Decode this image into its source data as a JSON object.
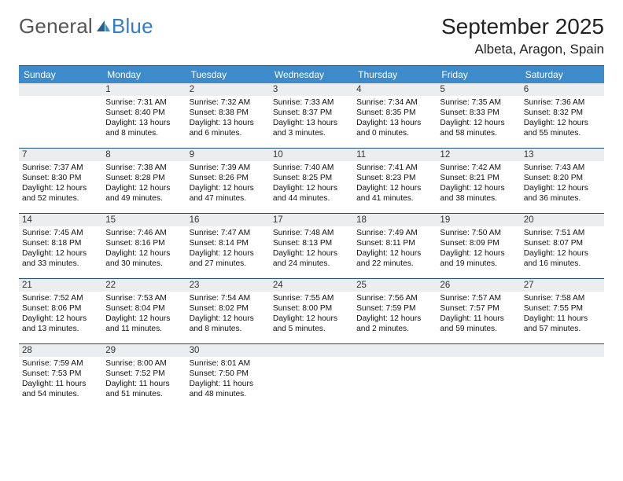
{
  "brand": {
    "general": "General",
    "blue": "Blue"
  },
  "title": {
    "month": "September 2025",
    "location": "Albeta, Aragon, Spain"
  },
  "style": {
    "header_bg": "#3e8bcb",
    "header_text": "#ffffff",
    "daynum_bg": "#ebedee",
    "divider": "#1f4e80",
    "brand_gray": "#555555",
    "brand_blue": "#2f7fc2"
  },
  "layout": {
    "columns": 7,
    "rows": 5,
    "first_day_offset": 1
  },
  "weekdays": [
    "Sunday",
    "Monday",
    "Tuesday",
    "Wednesday",
    "Thursday",
    "Friday",
    "Saturday"
  ],
  "days": [
    {
      "n": 1,
      "sunrise": "7:31 AM",
      "sunset": "8:40 PM",
      "daylight": "13 hours and 8 minutes."
    },
    {
      "n": 2,
      "sunrise": "7:32 AM",
      "sunset": "8:38 PM",
      "daylight": "13 hours and 6 minutes."
    },
    {
      "n": 3,
      "sunrise": "7:33 AM",
      "sunset": "8:37 PM",
      "daylight": "13 hours and 3 minutes."
    },
    {
      "n": 4,
      "sunrise": "7:34 AM",
      "sunset": "8:35 PM",
      "daylight": "13 hours and 0 minutes."
    },
    {
      "n": 5,
      "sunrise": "7:35 AM",
      "sunset": "8:33 PM",
      "daylight": "12 hours and 58 minutes."
    },
    {
      "n": 6,
      "sunrise": "7:36 AM",
      "sunset": "8:32 PM",
      "daylight": "12 hours and 55 minutes."
    },
    {
      "n": 7,
      "sunrise": "7:37 AM",
      "sunset": "8:30 PM",
      "daylight": "12 hours and 52 minutes."
    },
    {
      "n": 8,
      "sunrise": "7:38 AM",
      "sunset": "8:28 PM",
      "daylight": "12 hours and 49 minutes."
    },
    {
      "n": 9,
      "sunrise": "7:39 AM",
      "sunset": "8:26 PM",
      "daylight": "12 hours and 47 minutes."
    },
    {
      "n": 10,
      "sunrise": "7:40 AM",
      "sunset": "8:25 PM",
      "daylight": "12 hours and 44 minutes."
    },
    {
      "n": 11,
      "sunrise": "7:41 AM",
      "sunset": "8:23 PM",
      "daylight": "12 hours and 41 minutes."
    },
    {
      "n": 12,
      "sunrise": "7:42 AM",
      "sunset": "8:21 PM",
      "daylight": "12 hours and 38 minutes."
    },
    {
      "n": 13,
      "sunrise": "7:43 AM",
      "sunset": "8:20 PM",
      "daylight": "12 hours and 36 minutes."
    },
    {
      "n": 14,
      "sunrise": "7:45 AM",
      "sunset": "8:18 PM",
      "daylight": "12 hours and 33 minutes."
    },
    {
      "n": 15,
      "sunrise": "7:46 AM",
      "sunset": "8:16 PM",
      "daylight": "12 hours and 30 minutes."
    },
    {
      "n": 16,
      "sunrise": "7:47 AM",
      "sunset": "8:14 PM",
      "daylight": "12 hours and 27 minutes."
    },
    {
      "n": 17,
      "sunrise": "7:48 AM",
      "sunset": "8:13 PM",
      "daylight": "12 hours and 24 minutes."
    },
    {
      "n": 18,
      "sunrise": "7:49 AM",
      "sunset": "8:11 PM",
      "daylight": "12 hours and 22 minutes."
    },
    {
      "n": 19,
      "sunrise": "7:50 AM",
      "sunset": "8:09 PM",
      "daylight": "12 hours and 19 minutes."
    },
    {
      "n": 20,
      "sunrise": "7:51 AM",
      "sunset": "8:07 PM",
      "daylight": "12 hours and 16 minutes."
    },
    {
      "n": 21,
      "sunrise": "7:52 AM",
      "sunset": "8:06 PM",
      "daylight": "12 hours and 13 minutes."
    },
    {
      "n": 22,
      "sunrise": "7:53 AM",
      "sunset": "8:04 PM",
      "daylight": "12 hours and 11 minutes."
    },
    {
      "n": 23,
      "sunrise": "7:54 AM",
      "sunset": "8:02 PM",
      "daylight": "12 hours and 8 minutes."
    },
    {
      "n": 24,
      "sunrise": "7:55 AM",
      "sunset": "8:00 PM",
      "daylight": "12 hours and 5 minutes."
    },
    {
      "n": 25,
      "sunrise": "7:56 AM",
      "sunset": "7:59 PM",
      "daylight": "12 hours and 2 minutes."
    },
    {
      "n": 26,
      "sunrise": "7:57 AM",
      "sunset": "7:57 PM",
      "daylight": "11 hours and 59 minutes."
    },
    {
      "n": 27,
      "sunrise": "7:58 AM",
      "sunset": "7:55 PM",
      "daylight": "11 hours and 57 minutes."
    },
    {
      "n": 28,
      "sunrise": "7:59 AM",
      "sunset": "7:53 PM",
      "daylight": "11 hours and 54 minutes."
    },
    {
      "n": 29,
      "sunrise": "8:00 AM",
      "sunset": "7:52 PM",
      "daylight": "11 hours and 51 minutes."
    },
    {
      "n": 30,
      "sunrise": "8:01 AM",
      "sunset": "7:50 PM",
      "daylight": "11 hours and 48 minutes."
    }
  ],
  "labels": {
    "sunrise": "Sunrise:",
    "sunset": "Sunset:",
    "daylight": "Daylight:"
  }
}
